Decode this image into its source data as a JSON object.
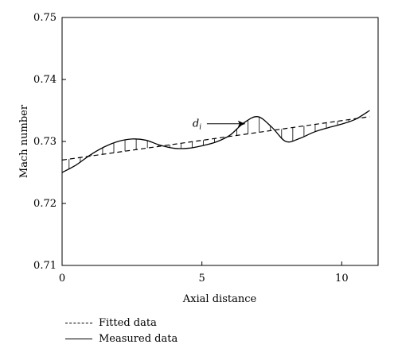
{
  "chart_data": {
    "type": "line",
    "xlabel": "Axial distance",
    "ylabel": "Mach number",
    "xlim": [
      0,
      11.3
    ],
    "ylim": [
      0.71,
      0.75
    ],
    "xticks": [
      0,
      5,
      10
    ],
    "yticks": [
      0.71,
      0.72,
      0.73,
      0.74,
      0.75
    ],
    "xtick_labels": [
      "0",
      "5",
      "10"
    ],
    "ytick_labels": [
      "0.71",
      "0.72",
      "0.73",
      "0.74",
      "0.75"
    ],
    "grid": false,
    "legend_position": "bottom-left",
    "series": [
      {
        "name": "Fitted data",
        "style": "dashed",
        "x": [
          0,
          11
        ],
        "y": [
          0.727,
          0.734
        ]
      },
      {
        "name": "Measured data",
        "style": "solid",
        "x": [
          0,
          0.5,
          1,
          1.5,
          2,
          2.5,
          3,
          3.5,
          4,
          4.5,
          5,
          5.5,
          6,
          6.5,
          7,
          7.5,
          8,
          8.5,
          9,
          9.5,
          10,
          10.5,
          11
        ],
        "y": [
          0.725,
          0.7262,
          0.7278,
          0.7291,
          0.73,
          0.7304,
          0.7302,
          0.7294,
          0.7289,
          0.7289,
          0.7293,
          0.7299,
          0.731,
          0.733,
          0.734,
          0.7323,
          0.73,
          0.7305,
          0.7315,
          0.7322,
          0.7328,
          0.7336,
          0.735
        ]
      }
    ],
    "annotations": [
      {
        "text": "d",
        "subscript": "i",
        "x": 6.6,
        "y": 0.7326
      }
    ]
  }
}
